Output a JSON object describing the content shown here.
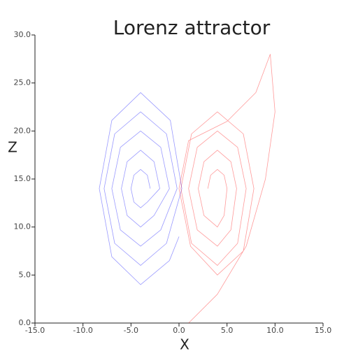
{
  "chart_data": {
    "type": "line",
    "title": "Lorenz attractor",
    "x_label": "X",
    "y_label": "Z",
    "xlim": [
      -15,
      15
    ],
    "ylim": [
      0,
      30
    ],
    "xticks": [
      {
        "value": -15,
        "label": "-15.0"
      },
      {
        "value": -10,
        "label": "-10.0"
      },
      {
        "value": -5,
        "label": "-5.0"
      },
      {
        "value": 0,
        "label": "0.0"
      },
      {
        "value": 5,
        "label": "5.0"
      },
      {
        "value": 10,
        "label": "10.0"
      },
      {
        "value": 15,
        "label": "15.0"
      }
    ],
    "yticks": [
      {
        "value": 0,
        "label": "0.0"
      },
      {
        "value": 5,
        "label": "5.0"
      },
      {
        "value": 10,
        "label": "10.0"
      },
      {
        "value": 15,
        "label": "15.0"
      },
      {
        "value": 20,
        "label": "20.0"
      },
      {
        "value": 25,
        "label": "25.0"
      },
      {
        "value": 30,
        "label": "30.0"
      }
    ],
    "grid": false,
    "series": [
      {
        "color": "#0000ff",
        "x": [
          -3,
          -3.3,
          -4,
          -4.7,
          -5,
          -4.7,
          -4,
          -3.3,
          -2,
          -2.6,
          -4,
          -5.4,
          -6,
          -5.4,
          -4,
          -2.6,
          -1,
          -1.9,
          -4,
          -6.1,
          -7,
          -6.1,
          -4,
          -1.9,
          -0.2,
          -1.3,
          -4,
          -6.7,
          -7.8,
          -6.7,
          -4,
          -1.3,
          0.3,
          -0.9,
          -4,
          -7,
          -8.3,
          -7,
          -4,
          -1,
          0
        ],
        "values": [
          14,
          15.4,
          16,
          15.4,
          14,
          12.6,
          12,
          12.6,
          14,
          16.8,
          18,
          16.8,
          14,
          11.2,
          10,
          11.2,
          14,
          18.3,
          20,
          18.3,
          14,
          9.7,
          8,
          9.7,
          14,
          19.7,
          22,
          19.7,
          14,
          8.3,
          6,
          8.3,
          14,
          21.1,
          24,
          21.1,
          14,
          6.9,
          4,
          6.5,
          9
        ]
      },
      {
        "color": "#ff0000",
        "x": [
          1,
          4,
          7,
          9,
          10,
          9.5,
          8,
          5,
          1,
          0,
          1.2,
          4,
          6.7,
          7.8,
          6.7,
          4,
          1.3,
          0.2,
          1.3,
          4,
          6.1,
          7,
          6.1,
          4,
          1.9,
          1,
          1.9,
          4,
          5.4,
          6,
          5.4,
          4,
          2.6,
          2,
          2.6,
          4,
          4.7,
          5,
          4.7,
          4,
          3.3,
          3
        ],
        "values": [
          0,
          3,
          8,
          15,
          22,
          28,
          24,
          21,
          19,
          14,
          8,
          5,
          7.5,
          14,
          19.7,
          22,
          19.7,
          14,
          8.3,
          6,
          8.3,
          14,
          18.3,
          20,
          18.3,
          14,
          9.7,
          8,
          9.7,
          14,
          16.8,
          18,
          16.8,
          14,
          11.2,
          10,
          11.2,
          14,
          15.4,
          16,
          15.4,
          14
        ]
      }
    ]
  }
}
